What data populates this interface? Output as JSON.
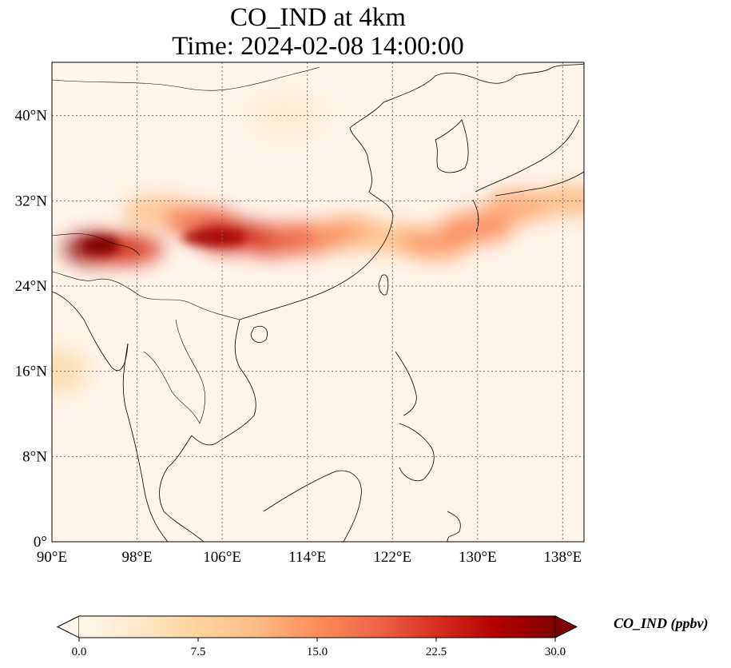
{
  "title": {
    "line1": "CO_IND at 4km",
    "line2": "Time: 2024-02-08 14:00:00"
  },
  "map": {
    "lon_range": [
      90,
      140
    ],
    "lat_range": [
      0,
      45
    ],
    "lon_ticks": [
      "90°E",
      "98°E",
      "106°E",
      "114°E",
      "122°E",
      "130°E",
      "138°E"
    ],
    "lat_ticks": [
      "0°",
      "8°N",
      "16°N",
      "24°N",
      "32°N",
      "40°N"
    ],
    "gridlines": true,
    "colormap": "OrRd"
  },
  "colorbar": {
    "label": "CO_IND (ppbv)",
    "min": 0.0,
    "max": 30.0,
    "extend": "both",
    "ticks": [
      "0.0",
      "7.5",
      "15.0",
      "22.5",
      "30.0"
    ],
    "colors": [
      "#fff7ec",
      "#fee8c8",
      "#fdd49e",
      "#fdbb84",
      "#fc8d59",
      "#ef6548",
      "#d7301f",
      "#b30000",
      "#7f0000"
    ]
  },
  "chart_data": {
    "type": "heatmap",
    "title": "CO_IND at 4km\nTime: 2024-02-08 14:00:00",
    "variable": "CO_IND",
    "units": "ppbv",
    "xlabel": "",
    "ylabel": "",
    "x_range": [
      90,
      140
    ],
    "y_range": [
      0,
      45
    ],
    "value_range": [
      0,
      30
    ],
    "plumes": [
      {
        "lon": 94.5,
        "lat": 27.5,
        "value": 29
      },
      {
        "lon": 97,
        "lat": 27.5,
        "value": 22
      },
      {
        "lon": 100,
        "lat": 31.0,
        "value": 10
      },
      {
        "lon": 104,
        "lat": 30.0,
        "value": 18
      },
      {
        "lon": 107,
        "lat": 28.7,
        "value": 24
      },
      {
        "lon": 111,
        "lat": 28.3,
        "value": 22
      },
      {
        "lon": 114,
        "lat": 28.5,
        "value": 18
      },
      {
        "lon": 118,
        "lat": 29.0,
        "value": 14
      },
      {
        "lon": 122,
        "lat": 28.5,
        "value": 10
      },
      {
        "lon": 126,
        "lat": 28.0,
        "value": 14
      },
      {
        "lon": 130,
        "lat": 29.5,
        "value": 15
      },
      {
        "lon": 134,
        "lat": 31.5,
        "value": 13
      },
      {
        "lon": 139,
        "lat": 32.0,
        "value": 11
      },
      {
        "lon": 90,
        "lat": 16.0,
        "value": 6
      },
      {
        "lon": 112,
        "lat": 40.0,
        "value": 3
      }
    ]
  }
}
